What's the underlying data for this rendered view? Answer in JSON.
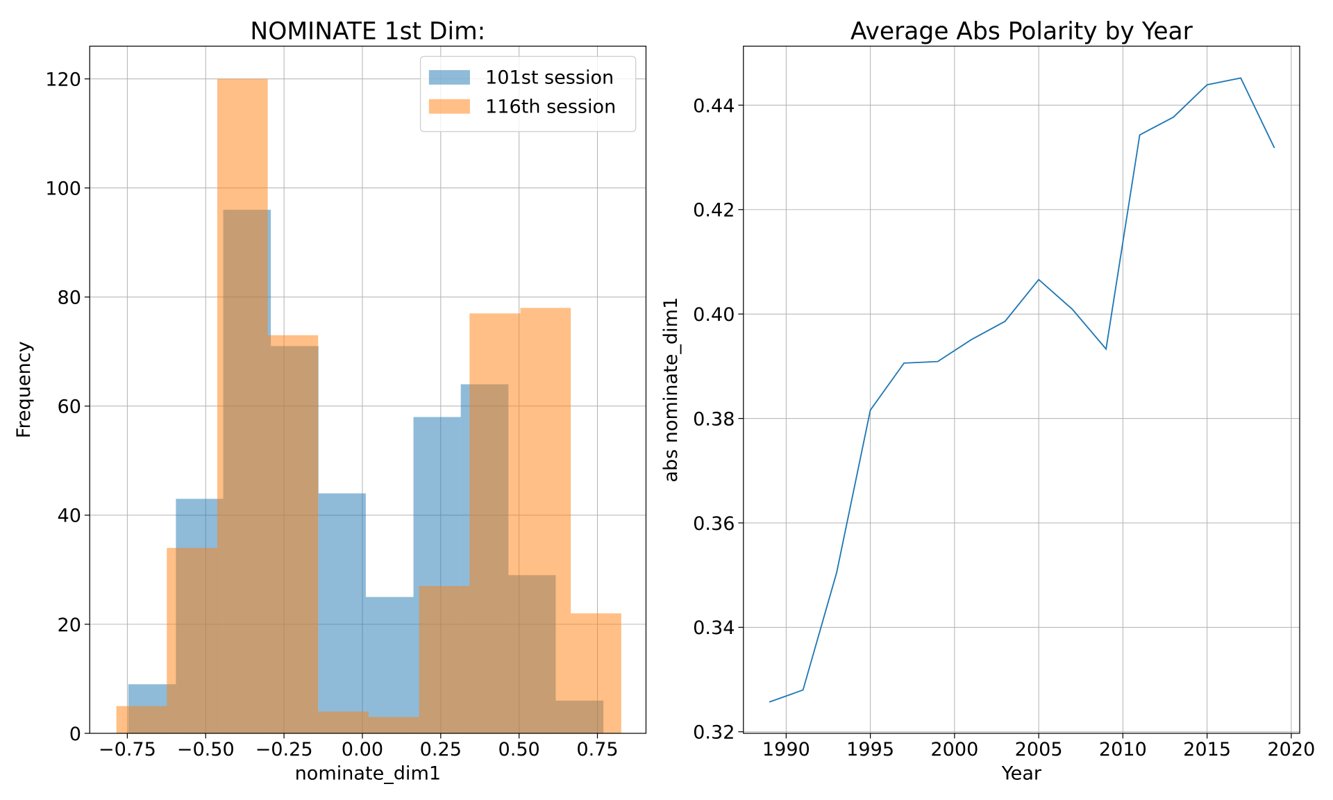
{
  "chart_data": [
    {
      "type": "histogram",
      "title": "NOMINATE 1st Dim:",
      "xlabel": "nominate_dim1",
      "ylabel": "Frequency",
      "grid": true,
      "legend": "upper right",
      "xlim": [
        -0.87,
        0.905
      ],
      "ylim": [
        0,
        126
      ],
      "xticks": [
        {
          "value": -0.75,
          "label": "−0.75"
        },
        {
          "value": -0.5,
          "label": "−0.50"
        },
        {
          "value": -0.25,
          "label": "−0.25"
        },
        {
          "value": 0,
          "label": "0.00"
        },
        {
          "value": 0.25,
          "label": "0.25"
        },
        {
          "value": 0.5,
          "label": "0.50"
        },
        {
          "value": 0.75,
          "label": "0.75"
        }
      ],
      "yticks": [
        0,
        20,
        40,
        60,
        80,
        100,
        120
      ],
      "series": [
        {
          "name": "101st session",
          "color": "#1f77b4",
          "opacity": 0.5,
          "bins": [
            -0.747,
            -0.595,
            -0.444,
            -0.292,
            -0.14,
            0.011,
            0.163,
            0.314,
            0.466,
            0.617,
            0.769
          ],
          "values": [
            9,
            43,
            96,
            71,
            44,
            25,
            58,
            64,
            29,
            6
          ]
        },
        {
          "name": "116th session",
          "color": "#ff7f0e",
          "opacity": 0.5,
          "bins": [
            -0.785,
            -0.624,
            -0.463,
            -0.302,
            -0.141,
            0.02,
            0.181,
            0.342,
            0.504,
            0.665,
            0.826
          ],
          "values": [
            5,
            34,
            120,
            73,
            4,
            3,
            27,
            77,
            78,
            22
          ]
        }
      ]
    },
    {
      "type": "line",
      "title": "Average Abs Polarity by Year",
      "xlabel": "Year",
      "ylabel": "abs nominate_dim1",
      "grid": true,
      "xlim": [
        1987.46,
        2020.5
      ],
      "ylim": [
        0.3197,
        0.4513
      ],
      "xticks": [
        1990,
        1995,
        2000,
        2005,
        2010,
        2015,
        2020
      ],
      "yticks": [
        0.32,
        0.34,
        0.36,
        0.38,
        {
          "value": 0.4,
          "label": "0.40"
        },
        0.42,
        0.44
      ],
      "series": [
        {
          "color": "#1f77b4",
          "x": [
            1989,
            1991,
            1993,
            1995,
            1997,
            1999,
            2001,
            2003,
            2005,
            2007,
            2009,
            2011,
            2013,
            2015,
            2017,
            2019
          ],
          "values": [
            0.3257,
            0.328,
            0.3505,
            0.3816,
            0.3906,
            0.3909,
            0.3951,
            0.3986,
            0.4066,
            0.4009,
            0.3933,
            0.4343,
            0.4377,
            0.4439,
            0.4452,
            0.4318
          ]
        }
      ]
    }
  ]
}
